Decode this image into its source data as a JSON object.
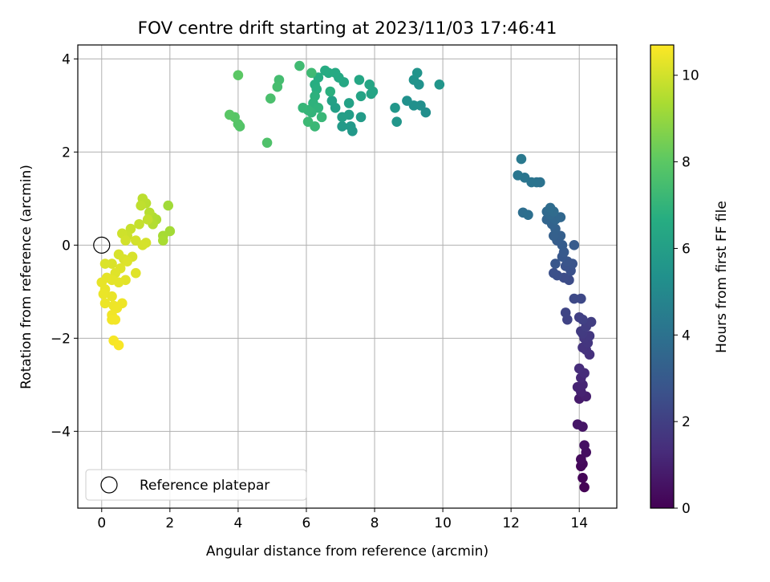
{
  "chart_data": {
    "type": "scatter",
    "title": "FOV centre drift starting at 2023/11/03 17:46:41",
    "xlabel": "Angular distance from reference (arcmin)",
    "ylabel": "Rotation from reference (arcmin)",
    "xlim": [
      -0.7,
      15.1
    ],
    "ylim": [
      -5.65,
      4.3
    ],
    "xticks": [
      0,
      2,
      4,
      6,
      8,
      10,
      12,
      14
    ],
    "yticks": [
      -4,
      -2,
      0,
      2,
      4
    ],
    "grid": true,
    "legend": {
      "placement": "lower-left",
      "entries": [
        "Reference platepar"
      ]
    },
    "colorbar": {
      "label": "Hours from first FF file",
      "range": [
        0,
        10.7
      ],
      "ticks": [
        0,
        2,
        4,
        6,
        8,
        10
      ],
      "colormap": "viridis"
    },
    "reference_point": {
      "x": 0,
      "y": 0,
      "label": "Reference platepar"
    },
    "points": [
      {
        "x": 14.15,
        "y": -5.2,
        "h": 0.05
      },
      {
        "x": 14.1,
        "y": -5.0,
        "h": 0.1
      },
      {
        "x": 14.05,
        "y": -4.75,
        "h": 0.15
      },
      {
        "x": 14.1,
        "y": -4.7,
        "h": 0.2
      },
      {
        "x": 14.05,
        "y": -4.6,
        "h": 0.3
      },
      {
        "x": 14.2,
        "y": -4.45,
        "h": 0.4
      },
      {
        "x": 14.15,
        "y": -4.3,
        "h": 0.5
      },
      {
        "x": 14.1,
        "y": -3.9,
        "h": 0.6
      },
      {
        "x": 13.95,
        "y": -3.85,
        "h": 0.65
      },
      {
        "x": 14.0,
        "y": -3.3,
        "h": 0.8
      },
      {
        "x": 14.2,
        "y": -3.25,
        "h": 0.9
      },
      {
        "x": 14.05,
        "y": -3.15,
        "h": 1.0
      },
      {
        "x": 13.95,
        "y": -3.05,
        "h": 1.05
      },
      {
        "x": 14.1,
        "y": -3.0,
        "h": 1.1
      },
      {
        "x": 14.05,
        "y": -2.85,
        "h": 1.2
      },
      {
        "x": 14.15,
        "y": -2.75,
        "h": 1.3
      },
      {
        "x": 14.0,
        "y": -2.65,
        "h": 1.35
      },
      {
        "x": 14.3,
        "y": -2.35,
        "h": 1.5
      },
      {
        "x": 14.2,
        "y": -2.25,
        "h": 1.55
      },
      {
        "x": 14.1,
        "y": -2.2,
        "h": 1.6
      },
      {
        "x": 14.25,
        "y": -2.1,
        "h": 1.65
      },
      {
        "x": 14.15,
        "y": -2.0,
        "h": 1.7
      },
      {
        "x": 14.3,
        "y": -1.95,
        "h": 1.75
      },
      {
        "x": 14.1,
        "y": -1.9,
        "h": 1.8
      },
      {
        "x": 14.05,
        "y": -1.85,
        "h": 1.85
      },
      {
        "x": 14.2,
        "y": -1.75,
        "h": 1.9
      },
      {
        "x": 14.35,
        "y": -1.65,
        "h": 1.95
      },
      {
        "x": 14.0,
        "y": -1.55,
        "h": 2.0
      },
      {
        "x": 14.1,
        "y": -1.6,
        "h": 2.05
      },
      {
        "x": 13.65,
        "y": -1.6,
        "h": 2.15
      },
      {
        "x": 13.6,
        "y": -1.45,
        "h": 2.2
      },
      {
        "x": 14.05,
        "y": -1.15,
        "h": 2.3
      },
      {
        "x": 13.85,
        "y": -1.15,
        "h": 2.35
      },
      {
        "x": 13.7,
        "y": -0.75,
        "h": 2.45
      },
      {
        "x": 13.55,
        "y": -0.7,
        "h": 2.5
      },
      {
        "x": 13.35,
        "y": -0.65,
        "h": 2.55
      },
      {
        "x": 13.25,
        "y": -0.6,
        "h": 2.6
      },
      {
        "x": 13.75,
        "y": -0.55,
        "h": 2.65
      },
      {
        "x": 13.6,
        "y": -0.45,
        "h": 2.7
      },
      {
        "x": 13.8,
        "y": -0.4,
        "h": 2.75
      },
      {
        "x": 13.65,
        "y": -0.35,
        "h": 2.8
      },
      {
        "x": 13.3,
        "y": -0.4,
        "h": 2.85
      },
      {
        "x": 13.5,
        "y": -0.25,
        "h": 2.9
      },
      {
        "x": 13.55,
        "y": -0.15,
        "h": 2.95
      },
      {
        "x": 13.85,
        "y": 0.0,
        "h": 3.05
      },
      {
        "x": 13.5,
        "y": 0.0,
        "h": 3.1
      },
      {
        "x": 13.35,
        "y": 0.1,
        "h": 3.15
      },
      {
        "x": 13.45,
        "y": 0.2,
        "h": 3.2
      },
      {
        "x": 13.25,
        "y": 0.2,
        "h": 3.25
      },
      {
        "x": 13.3,
        "y": 0.35,
        "h": 3.3
      },
      {
        "x": 13.2,
        "y": 0.45,
        "h": 3.4
      },
      {
        "x": 13.05,
        "y": 0.55,
        "h": 3.45
      },
      {
        "x": 13.3,
        "y": 0.55,
        "h": 3.5
      },
      {
        "x": 13.45,
        "y": 0.6,
        "h": 3.55
      },
      {
        "x": 13.15,
        "y": 0.65,
        "h": 3.6
      },
      {
        "x": 13.05,
        "y": 0.72,
        "h": 3.65
      },
      {
        "x": 13.25,
        "y": 0.72,
        "h": 3.7
      },
      {
        "x": 13.15,
        "y": 0.8,
        "h": 3.75
      },
      {
        "x": 12.35,
        "y": 0.7,
        "h": 3.85
      },
      {
        "x": 12.5,
        "y": 0.65,
        "h": 3.9
      },
      {
        "x": 12.85,
        "y": 1.35,
        "h": 4.0
      },
      {
        "x": 12.75,
        "y": 1.35,
        "h": 4.05
      },
      {
        "x": 12.6,
        "y": 1.35,
        "h": 4.1
      },
      {
        "x": 12.4,
        "y": 1.45,
        "h": 4.15
      },
      {
        "x": 12.2,
        "y": 1.5,
        "h": 4.2
      },
      {
        "x": 12.3,
        "y": 1.85,
        "h": 4.3
      },
      {
        "x": 9.5,
        "y": 2.85,
        "h": 5.2
      },
      {
        "x": 9.35,
        "y": 3.0,
        "h": 5.25
      },
      {
        "x": 9.15,
        "y": 3.0,
        "h": 5.3
      },
      {
        "x": 8.95,
        "y": 3.1,
        "h": 5.35
      },
      {
        "x": 9.3,
        "y": 3.45,
        "h": 5.4
      },
      {
        "x": 9.15,
        "y": 3.55,
        "h": 5.45
      },
      {
        "x": 9.25,
        "y": 3.7,
        "h": 5.5
      },
      {
        "x": 9.9,
        "y": 3.45,
        "h": 5.55
      },
      {
        "x": 8.65,
        "y": 2.65,
        "h": 5.6
      },
      {
        "x": 8.6,
        "y": 2.95,
        "h": 5.65
      },
      {
        "x": 7.35,
        "y": 2.45,
        "h": 5.7
      },
      {
        "x": 7.3,
        "y": 2.55,
        "h": 5.75
      },
      {
        "x": 7.05,
        "y": 2.55,
        "h": 5.8
      },
      {
        "x": 7.6,
        "y": 2.75,
        "h": 5.85
      },
      {
        "x": 7.25,
        "y": 2.8,
        "h": 5.9
      },
      {
        "x": 7.05,
        "y": 2.75,
        "h": 5.95
      },
      {
        "x": 6.85,
        "y": 2.95,
        "h": 6.0
      },
      {
        "x": 6.75,
        "y": 3.1,
        "h": 6.05
      },
      {
        "x": 7.25,
        "y": 3.05,
        "h": 6.1
      },
      {
        "x": 7.9,
        "y": 3.25,
        "h": 6.15
      },
      {
        "x": 7.6,
        "y": 3.2,
        "h": 6.2
      },
      {
        "x": 7.95,
        "y": 3.3,
        "h": 6.25
      },
      {
        "x": 7.85,
        "y": 3.45,
        "h": 6.3
      },
      {
        "x": 7.55,
        "y": 3.55,
        "h": 6.35
      },
      {
        "x": 7.1,
        "y": 3.5,
        "h": 6.4
      },
      {
        "x": 6.95,
        "y": 3.6,
        "h": 6.45
      },
      {
        "x": 6.85,
        "y": 3.7,
        "h": 6.5
      },
      {
        "x": 6.65,
        "y": 3.7,
        "h": 6.55
      },
      {
        "x": 6.55,
        "y": 3.75,
        "h": 6.6
      },
      {
        "x": 6.35,
        "y": 3.6,
        "h": 6.65
      },
      {
        "x": 6.25,
        "y": 3.45,
        "h": 6.7
      },
      {
        "x": 6.3,
        "y": 3.35,
        "h": 6.75
      },
      {
        "x": 6.7,
        "y": 3.3,
        "h": 6.8
      },
      {
        "x": 6.25,
        "y": 3.2,
        "h": 6.85
      },
      {
        "x": 6.2,
        "y": 3.05,
        "h": 6.9
      },
      {
        "x": 6.35,
        "y": 2.95,
        "h": 6.95
      },
      {
        "x": 6.15,
        "y": 2.85,
        "h": 7.0
      },
      {
        "x": 6.05,
        "y": 2.9,
        "h": 7.05
      },
      {
        "x": 5.9,
        "y": 2.95,
        "h": 7.1
      },
      {
        "x": 6.45,
        "y": 2.75,
        "h": 7.15
      },
      {
        "x": 6.25,
        "y": 2.55,
        "h": 7.2
      },
      {
        "x": 6.05,
        "y": 2.65,
        "h": 7.25
      },
      {
        "x": 6.15,
        "y": 3.7,
        "h": 7.3
      },
      {
        "x": 5.8,
        "y": 3.85,
        "h": 7.35
      },
      {
        "x": 5.2,
        "y": 3.55,
        "h": 7.45
      },
      {
        "x": 5.15,
        "y": 3.4,
        "h": 7.5
      },
      {
        "x": 4.95,
        "y": 3.15,
        "h": 7.6
      },
      {
        "x": 4.85,
        "y": 2.2,
        "h": 7.7
      },
      {
        "x": 4.05,
        "y": 2.55,
        "h": 7.8
      },
      {
        "x": 4.0,
        "y": 2.6,
        "h": 7.85
      },
      {
        "x": 3.9,
        "y": 2.75,
        "h": 7.9
      },
      {
        "x": 3.75,
        "y": 2.8,
        "h": 7.95
      },
      {
        "x": 4.0,
        "y": 3.65,
        "h": 8.0
      },
      {
        "x": 1.95,
        "y": 0.85,
        "h": 9.2
      },
      {
        "x": 2.0,
        "y": 0.3,
        "h": 9.25
      },
      {
        "x": 1.8,
        "y": 0.2,
        "h": 9.3
      },
      {
        "x": 1.8,
        "y": 0.1,
        "h": 9.35
      },
      {
        "x": 1.6,
        "y": 0.55,
        "h": 9.4
      },
      {
        "x": 1.5,
        "y": 0.6,
        "h": 9.45
      },
      {
        "x": 1.5,
        "y": 0.45,
        "h": 9.5
      },
      {
        "x": 1.4,
        "y": 0.7,
        "h": 9.55
      },
      {
        "x": 1.3,
        "y": 0.9,
        "h": 9.6
      },
      {
        "x": 1.2,
        "y": 1.0,
        "h": 9.65
      },
      {
        "x": 1.15,
        "y": 0.85,
        "h": 9.7
      },
      {
        "x": 1.35,
        "y": 0.55,
        "h": 9.75
      },
      {
        "x": 1.1,
        "y": 0.45,
        "h": 9.8
      },
      {
        "x": 0.85,
        "y": 0.35,
        "h": 9.85
      },
      {
        "x": 0.75,
        "y": 0.2,
        "h": 9.9
      },
      {
        "x": 0.6,
        "y": 0.25,
        "h": 9.95
      },
      {
        "x": 0.7,
        "y": 0.1,
        "h": 10.0
      },
      {
        "x": 1.0,
        "y": 0.1,
        "h": 10.02
      },
      {
        "x": 1.3,
        "y": 0.05,
        "h": 10.04
      },
      {
        "x": 1.2,
        "y": 0.0,
        "h": 10.06
      },
      {
        "x": 0.5,
        "y": -0.2,
        "h": 10.08
      },
      {
        "x": 0.9,
        "y": -0.25,
        "h": 10.1
      },
      {
        "x": 0.65,
        "y": -0.3,
        "h": 10.12
      },
      {
        "x": 0.3,
        "y": -0.4,
        "h": 10.14
      },
      {
        "x": 0.1,
        "y": -0.4,
        "h": 10.16
      },
      {
        "x": 0.75,
        "y": -0.35,
        "h": 10.18
      },
      {
        "x": 0.55,
        "y": -0.5,
        "h": 10.2
      },
      {
        "x": 0.4,
        "y": -0.6,
        "h": 10.22
      },
      {
        "x": 1.0,
        "y": -0.6,
        "h": 10.24
      },
      {
        "x": 0.7,
        "y": -0.75,
        "h": 10.26
      },
      {
        "x": 0.5,
        "y": -0.8,
        "h": 10.28
      },
      {
        "x": 0.3,
        "y": -0.75,
        "h": 10.3
      },
      {
        "x": 0.15,
        "y": -0.7,
        "h": 10.32
      },
      {
        "x": 0.0,
        "y": -0.8,
        "h": 10.34
      },
      {
        "x": 0.1,
        "y": -0.95,
        "h": 10.36
      },
      {
        "x": 0.3,
        "y": -1.1,
        "h": 10.38
      },
      {
        "x": 0.05,
        "y": -1.05,
        "h": 10.4
      },
      {
        "x": 0.1,
        "y": -1.25,
        "h": 10.42
      },
      {
        "x": 0.35,
        "y": -1.3,
        "h": 10.44
      },
      {
        "x": 0.6,
        "y": -1.25,
        "h": 10.46
      },
      {
        "x": 0.45,
        "y": -1.35,
        "h": 10.48
      },
      {
        "x": 0.3,
        "y": -1.5,
        "h": 10.5
      },
      {
        "x": 0.3,
        "y": -1.6,
        "h": 10.52
      },
      {
        "x": 0.4,
        "y": -1.6,
        "h": 10.54
      },
      {
        "x": 0.35,
        "y": -2.05,
        "h": 10.58
      },
      {
        "x": 0.5,
        "y": -2.15,
        "h": 10.62
      }
    ]
  }
}
